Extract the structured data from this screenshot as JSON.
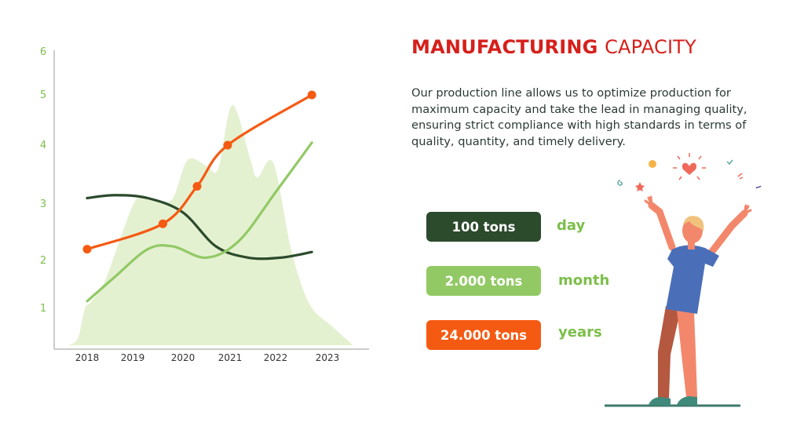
{
  "title": {
    "strong": "MANUFACTURING",
    "light": "CAPACITY"
  },
  "description": "Our production line allows us to optimize production for maximum capacity and take the lead in managing quality, ensuring strict compliance with high standards in terms of quality, quantity, and timely delivery.",
  "capacity": [
    {
      "amount": "100 tons",
      "period": "day",
      "color": "#2c4a2c"
    },
    {
      "amount": "2.000 tons",
      "period": "month",
      "color": "#92c965"
    },
    {
      "amount": "24.000 tons",
      "period": "years",
      "color": "#f55a12"
    }
  ],
  "chart_data": {
    "type": "line",
    "x_ticks": [
      "2018",
      "2019",
      "2020",
      "2021",
      "2022",
      "2023"
    ],
    "y_ticks": [
      1,
      2,
      3,
      4,
      5,
      6
    ],
    "ylim": [
      0,
      6
    ],
    "grid": false,
    "area_color": "#e4f1d1",
    "area": [
      {
        "x": 2017.6,
        "y": 0
      },
      {
        "x": 2017.8,
        "y": 0.2
      },
      {
        "x": 2017.95,
        "y": 1.0
      },
      {
        "x": 2018.1,
        "y": 1.15
      },
      {
        "x": 2018.4,
        "y": 1.6
      },
      {
        "x": 2018.8,
        "y": 2.55
      },
      {
        "x": 2019.1,
        "y": 3.1
      },
      {
        "x": 2019.5,
        "y": 3.05
      },
      {
        "x": 2019.8,
        "y": 3.1
      },
      {
        "x": 2020.1,
        "y": 3.75
      },
      {
        "x": 2020.5,
        "y": 3.65
      },
      {
        "x": 2020.75,
        "y": 3.6
      },
      {
        "x": 2021.05,
        "y": 4.8
      },
      {
        "x": 2021.45,
        "y": 3.75
      },
      {
        "x": 2021.6,
        "y": 3.45
      },
      {
        "x": 2021.95,
        "y": 3.7
      },
      {
        "x": 2022.3,
        "y": 2.2
      },
      {
        "x": 2022.65,
        "y": 1.1
      },
      {
        "x": 2023.1,
        "y": 0.5
      },
      {
        "x": 2023.5,
        "y": 0
      }
    ],
    "series": [
      {
        "color": "#2c4a2c",
        "markers": false,
        "points": [
          {
            "x": 2018.0,
            "y": 3.1
          },
          {
            "x": 2018.6,
            "y": 3.15
          },
          {
            "x": 2019.3,
            "y": 3.1
          },
          {
            "x": 2020.0,
            "y": 2.85
          },
          {
            "x": 2020.7,
            "y": 2.25
          },
          {
            "x": 2021.4,
            "y": 2.05
          },
          {
            "x": 2022.1,
            "y": 2.05
          },
          {
            "x": 2022.7,
            "y": 2.15
          }
        ]
      },
      {
        "color": "#92c965",
        "markers": false,
        "points": [
          {
            "x": 2018.0,
            "y": 1.15
          },
          {
            "x": 2018.6,
            "y": 1.65
          },
          {
            "x": 2019.3,
            "y": 2.2
          },
          {
            "x": 2019.8,
            "y": 2.25
          },
          {
            "x": 2020.5,
            "y": 2.05
          },
          {
            "x": 2021.2,
            "y": 2.35
          },
          {
            "x": 2022.0,
            "y": 3.2
          },
          {
            "x": 2022.7,
            "y": 4.05
          }
        ]
      },
      {
        "color": "#f55a12",
        "markers": true,
        "points": [
          {
            "x": 2018.0,
            "y": 2.2
          },
          {
            "x": 2019.6,
            "y": 2.65
          },
          {
            "x": 2020.3,
            "y": 3.3
          },
          {
            "x": 2020.95,
            "y": 4.0
          },
          {
            "x": 2022.7,
            "y": 5.0
          }
        ]
      }
    ]
  }
}
